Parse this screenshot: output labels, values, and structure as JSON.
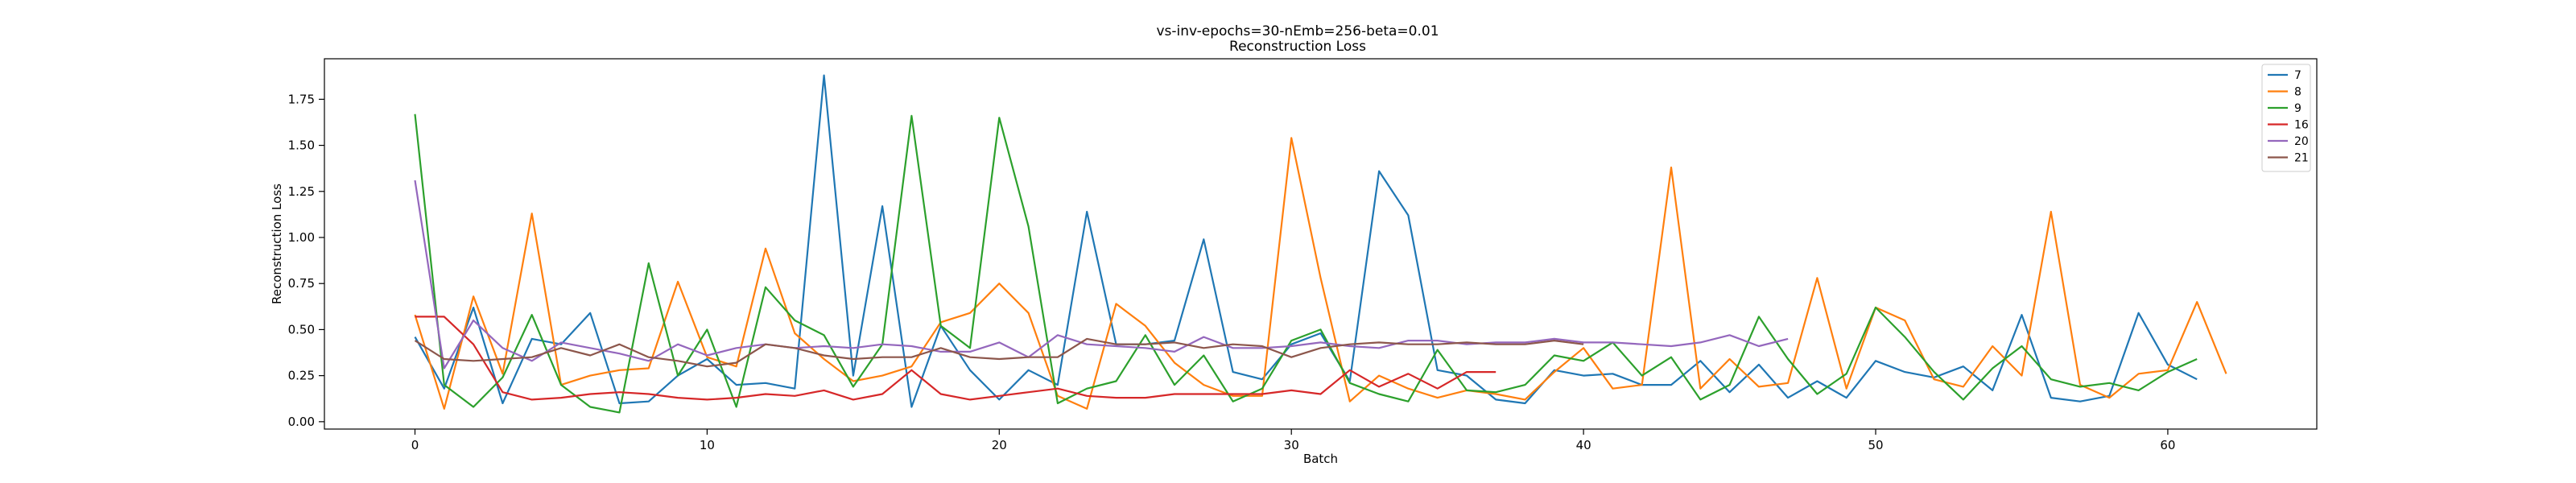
{
  "chart_data": {
    "type": "line",
    "title": "vs-inv-epochs=30-nEmb=256-beta=0.01",
    "subtitle": "Reconstruction Loss",
    "xlabel": "Batch",
    "ylabel": "Reconstruction Loss",
    "xlim": [
      -3.1,
      65.1
    ],
    "ylim": [
      -0.04,
      1.97
    ],
    "xticks": [
      0,
      10,
      20,
      30,
      40,
      50,
      60
    ],
    "yticks": [
      0.0,
      0.25,
      0.5,
      0.75,
      1.0,
      1.25,
      1.5,
      1.75
    ],
    "grid": false,
    "legend_position": "top-right",
    "series": [
      {
        "name": "7",
        "color": "#1f77b4",
        "values": [
          0.46,
          0.18,
          0.62,
          0.1,
          0.45,
          0.42,
          0.59,
          0.1,
          0.11,
          0.25,
          0.34,
          0.2,
          0.21,
          0.18,
          1.88,
          0.25,
          1.17,
          0.08,
          0.52,
          0.28,
          0.12,
          0.28,
          0.2,
          1.14,
          0.42,
          0.42,
          0.44,
          0.99,
          0.27,
          0.23,
          0.42,
          0.48,
          0.22,
          1.36,
          1.12,
          0.28,
          0.25,
          0.12,
          0.1,
          0.28,
          0.25,
          0.26,
          0.2,
          0.2,
          0.33,
          0.16,
          0.31,
          0.13,
          0.22,
          0.13,
          0.33,
          0.27,
          0.24,
          0.3,
          0.17,
          0.58,
          0.13,
          0.11,
          0.14,
          0.59,
          0.31,
          0.23
        ]
      },
      {
        "name": "8",
        "color": "#ff7f0e",
        "values": [
          0.58,
          0.07,
          0.68,
          0.26,
          1.13,
          0.2,
          0.25,
          0.28,
          0.29,
          0.76,
          0.35,
          0.3,
          0.94,
          0.48,
          0.34,
          0.22,
          0.25,
          0.3,
          0.54,
          0.59,
          0.75,
          0.59,
          0.14,
          0.07,
          0.64,
          0.52,
          0.32,
          0.2,
          0.14,
          0.14,
          1.54,
          0.78,
          0.11,
          0.25,
          0.18,
          0.13,
          0.17,
          0.15,
          0.12,
          0.27,
          0.4,
          0.18,
          0.2,
          1.38,
          0.18,
          0.34,
          0.19,
          0.21,
          0.78,
          0.18,
          0.62,
          0.55,
          0.23,
          0.19,
          0.41,
          0.25,
          1.14,
          0.2,
          0.13,
          0.26,
          0.28,
          0.65,
          0.26
        ]
      },
      {
        "name": "9",
        "color": "#2ca02c",
        "values": [
          1.67,
          0.2,
          0.08,
          0.24,
          0.58,
          0.2,
          0.08,
          0.05,
          0.86,
          0.25,
          0.5,
          0.08,
          0.73,
          0.55,
          0.47,
          0.19,
          0.42,
          1.66,
          0.52,
          0.4,
          1.65,
          1.06,
          0.1,
          0.18,
          0.22,
          0.47,
          0.2,
          0.36,
          0.11,
          0.18,
          0.44,
          0.5,
          0.21,
          0.15,
          0.11,
          0.39,
          0.17,
          0.16,
          0.2,
          0.36,
          0.33,
          0.43,
          0.25,
          0.35,
          0.12,
          0.2,
          0.57,
          0.34,
          0.15,
          0.26,
          0.62,
          0.46,
          0.27,
          0.12,
          0.29,
          0.41,
          0.23,
          0.19,
          0.21,
          0.17,
          0.27,
          0.34
        ]
      },
      {
        "name": "16",
        "color": "#d62728",
        "values": [
          0.57,
          0.57,
          0.42,
          0.16,
          0.12,
          0.13,
          0.15,
          0.16,
          0.15,
          0.13,
          0.12,
          0.13,
          0.15,
          0.14,
          0.17,
          0.12,
          0.15,
          0.28,
          0.15,
          0.12,
          0.14,
          0.16,
          0.18,
          0.14,
          0.13,
          0.13,
          0.15,
          0.15,
          0.15,
          0.15,
          0.17,
          0.15,
          0.28,
          0.19,
          0.26,
          0.18,
          0.27,
          0.27
        ]
      },
      {
        "name": "20",
        "color": "#9467bd",
        "values": [
          1.31,
          0.29,
          0.55,
          0.4,
          0.33,
          0.43,
          0.4,
          0.37,
          0.33,
          0.42,
          0.36,
          0.4,
          0.42,
          0.4,
          0.41,
          0.4,
          0.42,
          0.41,
          0.38,
          0.38,
          0.43,
          0.35,
          0.47,
          0.42,
          0.41,
          0.4,
          0.38,
          0.46,
          0.4,
          0.4,
          0.41,
          0.43,
          0.41,
          0.4,
          0.44,
          0.44,
          0.42,
          0.43,
          0.43,
          0.45,
          0.43,
          0.43,
          0.42,
          0.41,
          0.43,
          0.47,
          0.41,
          0.45
        ]
      },
      {
        "name": "21",
        "color": "#8c564b",
        "values": [
          0.44,
          0.34,
          0.33,
          0.34,
          0.35,
          0.4,
          0.36,
          0.42,
          0.35,
          0.33,
          0.3,
          0.32,
          0.42,
          0.4,
          0.36,
          0.34,
          0.35,
          0.35,
          0.4,
          0.35,
          0.34,
          0.35,
          0.35,
          0.45,
          0.42,
          0.42,
          0.43,
          0.4,
          0.42,
          0.41,
          0.35,
          0.4,
          0.42,
          0.43,
          0.42,
          0.42,
          0.43,
          0.42,
          0.42,
          0.44,
          0.42
        ]
      }
    ]
  }
}
